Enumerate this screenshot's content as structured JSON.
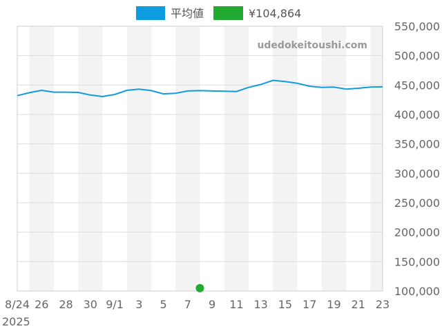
{
  "chart_data": {
    "type": "line",
    "watermark": "udedokeitoushi.com",
    "x_tick_labels": [
      "8/24",
      "26",
      "28",
      "30",
      "9/1",
      "3",
      "5",
      "7",
      "9",
      "11",
      "13",
      "15",
      "17",
      "19",
      "21",
      "23"
    ],
    "x_year_label": "2025",
    "y_tick_labels": [
      "100,000",
      "150,000",
      "200,000",
      "250,000",
      "300,000",
      "350,000",
      "400,000",
      "450,000",
      "500,000",
      "550,000"
    ],
    "ylim": [
      100000,
      550000
    ],
    "grid": true,
    "legend_position": "top-center",
    "x": [
      "8/24",
      "8/25",
      "8/26",
      "8/27",
      "8/28",
      "8/29",
      "8/30",
      "8/31",
      "9/1",
      "9/2",
      "9/3",
      "9/4",
      "9/5",
      "9/6",
      "9/7",
      "9/8",
      "9/9",
      "9/10",
      "9/11",
      "9/12",
      "9/13",
      "9/14",
      "9/15",
      "9/16",
      "9/17",
      "9/18",
      "9/19",
      "9/20",
      "9/21",
      "9/22",
      "9/23"
    ],
    "series": [
      {
        "name": "平均値",
        "type": "line",
        "color": "#0f9be0",
        "values": [
          432000,
          437000,
          441000,
          438000,
          438000,
          437500,
          433000,
          430500,
          434000,
          441000,
          443000,
          440500,
          435000,
          436000,
          440000,
          440500,
          440000,
          439500,
          439000,
          446000,
          451000,
          458000,
          456000,
          453000,
          448000,
          446000,
          446500,
          443000,
          444500,
          446500,
          447000
        ]
      },
      {
        "name": "¥104,864",
        "type": "scatter",
        "color": "#22aa33",
        "points": [
          {
            "x": "9/8",
            "y": 104864
          }
        ]
      }
    ]
  }
}
